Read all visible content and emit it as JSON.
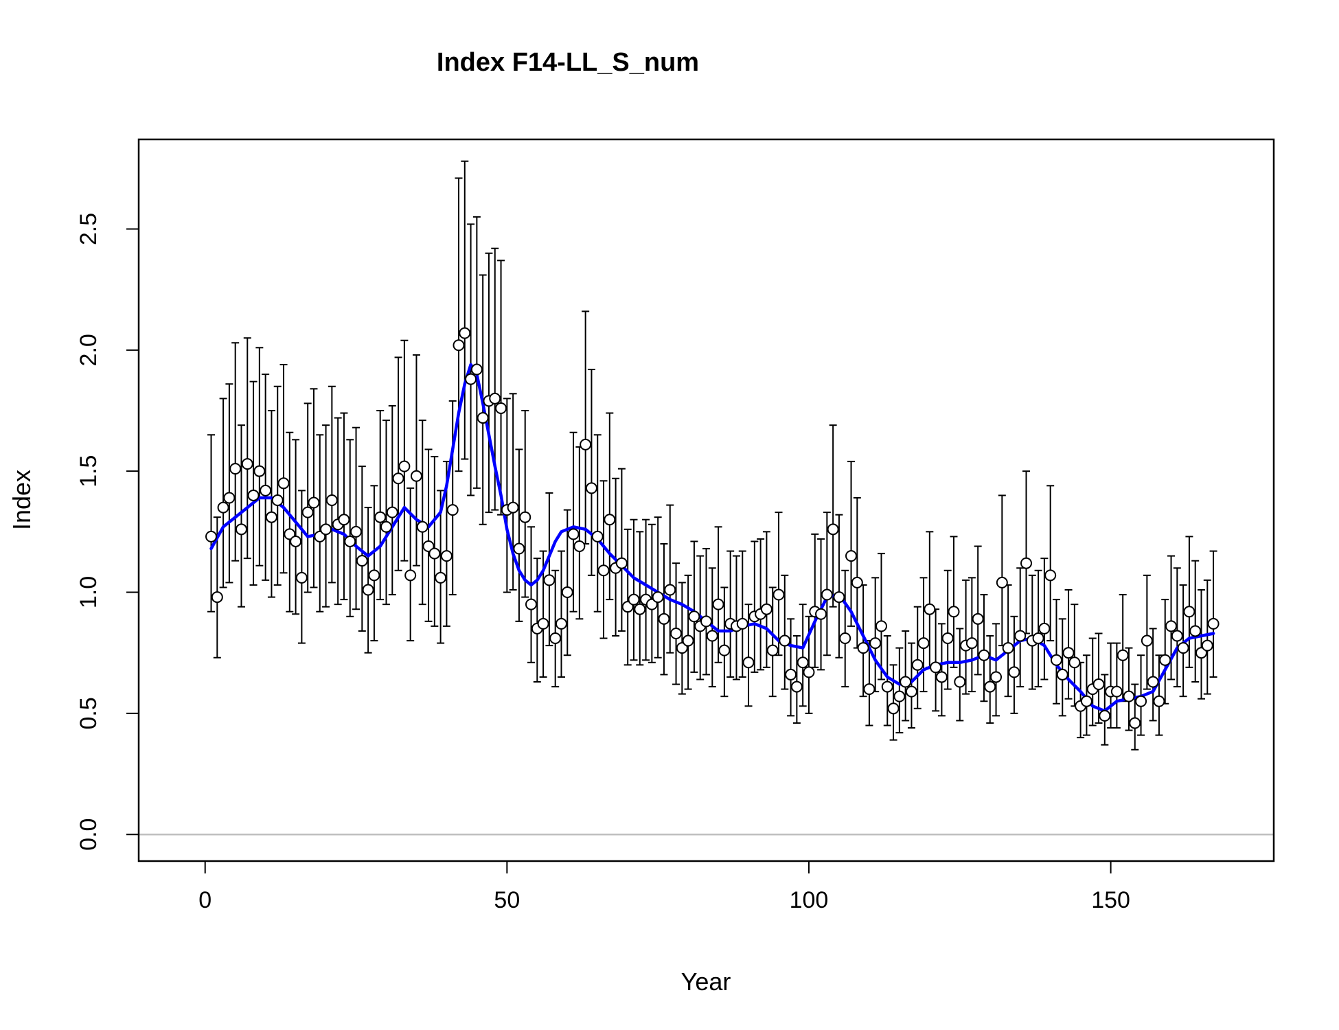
{
  "chart_data": {
    "type": "scatter",
    "title": "Index F14-LL_S_num",
    "xlabel": "Year",
    "ylabel": "Index",
    "xlim": [
      -11,
      177
    ],
    "ylim": [
      -0.11,
      2.87
    ],
    "x_ticks": [
      0,
      50,
      100,
      150
    ],
    "y_ticks": [
      0.0,
      0.5,
      1.0,
      1.5,
      2.0,
      2.5
    ],
    "x_tick_labels": [
      "0",
      "50",
      "100",
      "150"
    ],
    "y_tick_labels": [
      "0.0",
      "0.5",
      "1.0",
      "1.5",
      "2.0",
      "2.5"
    ],
    "reference_line": {
      "y": 0,
      "color": "#bebebe"
    },
    "grid": false,
    "legend": "none",
    "colors": {
      "points_fill": "#ffffff",
      "points_stroke": "#000000",
      "errorbars": "#000000",
      "smoother": "#0000ff"
    },
    "series": [
      {
        "kind": "observed",
        "x": [
          1,
          2,
          3,
          4,
          5,
          6,
          7,
          8,
          9,
          10,
          11,
          12,
          13,
          14,
          15,
          16,
          17,
          18,
          19,
          20,
          21,
          22,
          23,
          24,
          25,
          26,
          27,
          28,
          29,
          30,
          31,
          32,
          33,
          34,
          35,
          36,
          37,
          38,
          39,
          40,
          41,
          42,
          43,
          44,
          45,
          46,
          47,
          48,
          49,
          50,
          51,
          52,
          53,
          54,
          55,
          56,
          57,
          58,
          59,
          60,
          61,
          62,
          63,
          64,
          65,
          66,
          67,
          68,
          69,
          70,
          71,
          72,
          73,
          74,
          75,
          76,
          77,
          78,
          79,
          80,
          81,
          82,
          83,
          84,
          85,
          86,
          87,
          88,
          89,
          90,
          91,
          92,
          93,
          94,
          95,
          96,
          97,
          98,
          99,
          100,
          101,
          102,
          103,
          104,
          105,
          106,
          107,
          108,
          109,
          110,
          111,
          112,
          113,
          114,
          115,
          116,
          117,
          118,
          119,
          120,
          121,
          122,
          123,
          124,
          125,
          126,
          127,
          128,
          129,
          130,
          131,
          132,
          133,
          134,
          135,
          136,
          137,
          138,
          139,
          140,
          141,
          142,
          143,
          144,
          145,
          146,
          147,
          148,
          149,
          150,
          151,
          152,
          153,
          154,
          155,
          156,
          157,
          158,
          159,
          160,
          161,
          162,
          163,
          164,
          165,
          166,
          167
        ],
        "y": [
          1.23,
          0.98,
          1.35,
          1.39,
          1.51,
          1.26,
          1.53,
          1.4,
          1.5,
          1.42,
          1.31,
          1.38,
          1.45,
          1.24,
          1.21,
          1.06,
          1.33,
          1.37,
          1.23,
          1.26,
          1.38,
          1.28,
          1.3,
          1.21,
          1.25,
          1.13,
          1.01,
          1.07,
          1.31,
          1.27,
          1.33,
          1.47,
          1.52,
          1.07,
          1.48,
          1.27,
          1.19,
          1.16,
          1.06,
          1.15,
          1.34,
          2.02,
          2.07,
          1.88,
          1.92,
          1.72,
          1.79,
          1.8,
          1.76,
          1.34,
          1.35,
          1.18,
          1.31,
          0.95,
          0.85,
          0.87,
          1.05,
          0.81,
          0.87,
          1.0,
          1.24,
          1.19,
          1.61,
          1.43,
          1.23,
          1.09,
          1.3,
          1.1,
          1.12,
          0.94,
          0.97,
          0.93,
          0.97,
          0.95,
          0.98,
          0.89,
          1.01,
          0.83,
          0.77,
          0.8,
          0.9,
          0.86,
          0.88,
          0.82,
          0.95,
          0.76,
          0.87,
          0.86,
          0.87,
          0.71,
          0.9,
          0.91,
          0.93,
          0.76,
          0.99,
          0.8,
          0.66,
          0.61,
          0.71,
          0.67,
          0.92,
          0.91,
          0.99,
          1.26,
          0.98,
          0.81,
          1.15,
          1.04,
          0.77,
          0.6,
          0.79,
          0.86,
          0.61,
          0.52,
          0.57,
          0.63,
          0.59,
          0.7,
          0.79,
          0.93,
          0.69,
          0.65,
          0.81,
          0.92,
          0.63,
          0.78,
          0.79,
          0.89,
          0.74,
          0.61,
          0.65,
          1.04,
          0.77,
          0.67,
          0.82,
          1.12,
          0.8,
          0.81,
          0.85,
          1.07,
          0.72,
          0.66,
          0.75,
          0.71,
          0.53,
          0.55,
          0.6,
          0.62,
          0.49,
          0.59,
          0.59,
          0.74,
          0.57,
          0.46,
          0.55,
          0.8,
          0.63,
          0.55,
          0.72,
          0.86,
          0.82,
          0.77,
          0.92,
          0.84,
          0.75,
          0.78,
          0.87
        ],
        "lower": [
          0.92,
          0.73,
          1.02,
          1.04,
          1.13,
          0.94,
          1.14,
          1.03,
          1.11,
          1.05,
          0.98,
          1.03,
          1.08,
          0.92,
          0.91,
          0.79,
          1.0,
          1.02,
          0.92,
          0.94,
          1.04,
          0.95,
          0.97,
          0.9,
          0.93,
          0.84,
          0.75,
          0.8,
          0.97,
          0.95,
          0.99,
          1.09,
          1.13,
          0.8,
          1.11,
          0.95,
          0.88,
          0.86,
          0.79,
          0.86,
          0.99,
          1.5,
          1.55,
          1.4,
          1.43,
          1.28,
          1.33,
          1.34,
          1.32,
          1.0,
          1.01,
          0.88,
          0.98,
          0.71,
          0.63,
          0.65,
          0.78,
          0.61,
          0.65,
          0.74,
          0.92,
          0.89,
          1.2,
          1.07,
          0.92,
          0.81,
          0.97,
          0.82,
          0.84,
          0.7,
          0.72,
          0.7,
          0.72,
          0.71,
          0.73,
          0.66,
          0.75,
          0.62,
          0.58,
          0.6,
          0.67,
          0.64,
          0.66,
          0.61,
          0.71,
          0.57,
          0.65,
          0.64,
          0.65,
          0.53,
          0.67,
          0.68,
          0.69,
          0.57,
          0.74,
          0.6,
          0.49,
          0.46,
          0.53,
          0.5,
          0.69,
          0.68,
          0.74,
          0.94,
          0.73,
          0.61,
          0.86,
          0.77,
          0.57,
          0.45,
          0.59,
          0.64,
          0.45,
          0.39,
          0.42,
          0.47,
          0.44,
          0.52,
          0.59,
          0.69,
          0.51,
          0.49,
          0.6,
          0.69,
          0.47,
          0.58,
          0.59,
          0.66,
          0.55,
          0.46,
          0.49,
          0.78,
          0.57,
          0.5,
          0.61,
          0.83,
          0.6,
          0.61,
          0.64,
          0.8,
          0.54,
          0.49,
          0.56,
          0.53,
          0.4,
          0.41,
          0.45,
          0.46,
          0.37,
          0.44,
          0.44,
          0.55,
          0.43,
          0.35,
          0.41,
          0.6,
          0.47,
          0.41,
          0.54,
          0.64,
          0.61,
          0.57,
          0.69,
          0.63,
          0.56,
          0.58,
          0.65
        ],
        "upper": [
          1.65,
          1.31,
          1.8,
          1.86,
          2.03,
          1.69,
          2.05,
          1.87,
          2.01,
          1.9,
          1.75,
          1.85,
          1.94,
          1.66,
          1.63,
          1.42,
          1.78,
          1.84,
          1.65,
          1.69,
          1.85,
          1.72,
          1.74,
          1.63,
          1.68,
          1.52,
          1.35,
          1.44,
          1.75,
          1.71,
          1.77,
          1.97,
          2.04,
          1.43,
          1.98,
          1.71,
          1.59,
          1.56,
          1.42,
          1.54,
          1.79,
          2.71,
          2.78,
          2.52,
          2.55,
          2.31,
          2.4,
          2.42,
          2.37,
          1.8,
          1.82,
          1.59,
          1.75,
          1.27,
          1.14,
          1.17,
          1.41,
          1.09,
          1.17,
          1.34,
          1.66,
          1.6,
          2.16,
          1.92,
          1.65,
          1.46,
          1.74,
          1.47,
          1.51,
          1.26,
          1.3,
          1.25,
          1.3,
          1.28,
          1.31,
          1.2,
          1.36,
          1.12,
          1.04,
          1.07,
          1.21,
          1.15,
          1.18,
          1.1,
          1.27,
          1.02,
          1.17,
          1.15,
          1.17,
          0.95,
          1.21,
          1.22,
          1.25,
          1.02,
          1.33,
          1.07,
          0.89,
          0.82,
          0.95,
          0.9,
          1.24,
          1.22,
          1.33,
          1.69,
          1.32,
          1.09,
          1.54,
          1.39,
          1.03,
          0.8,
          1.06,
          1.16,
          0.82,
          0.7,
          0.77,
          0.84,
          0.79,
          0.94,
          1.06,
          1.25,
          0.93,
          0.87,
          1.09,
          1.23,
          0.85,
          1.05,
          1.06,
          1.19,
          0.99,
          0.82,
          0.87,
          1.4,
          1.03,
          0.9,
          1.1,
          1.5,
          1.07,
          1.09,
          1.14,
          1.44,
          0.97,
          0.89,
          1.01,
          0.95,
          0.71,
          0.74,
          0.81,
          0.83,
          0.66,
          0.79,
          0.79,
          0.99,
          0.77,
          0.62,
          0.74,
          1.07,
          0.85,
          0.74,
          0.97,
          1.15,
          1.1,
          1.03,
          1.23,
          1.13,
          1.01,
          1.05,
          1.17
        ]
      },
      {
        "kind": "smoother",
        "x": [
          1,
          3,
          5,
          7,
          9,
          11,
          13,
          15,
          17,
          19,
          21,
          23,
          25,
          27,
          29,
          31,
          33,
          35,
          37,
          39,
          40,
          41,
          42,
          43,
          44,
          45,
          46,
          47,
          48,
          49,
          50,
          51,
          52,
          53,
          54,
          55,
          56,
          57,
          58,
          59,
          61,
          63,
          65,
          67,
          69,
          71,
          73,
          75,
          77,
          79,
          81,
          83,
          85,
          87,
          89,
          91,
          93,
          95,
          97,
          99,
          101,
          103,
          105,
          107,
          109,
          111,
          113,
          115,
          117,
          119,
          121,
          123,
          125,
          127,
          129,
          131,
          133,
          135,
          137,
          139,
          141,
          143,
          145,
          147,
          149,
          151,
          153,
          155,
          157,
          159,
          161,
          163,
          165,
          167
        ],
        "y": [
          1.18,
          1.27,
          1.31,
          1.35,
          1.39,
          1.39,
          1.35,
          1.29,
          1.23,
          1.24,
          1.26,
          1.24,
          1.19,
          1.15,
          1.19,
          1.27,
          1.35,
          1.3,
          1.27,
          1.33,
          1.44,
          1.59,
          1.74,
          1.86,
          1.94,
          1.9,
          1.78,
          1.65,
          1.52,
          1.4,
          1.26,
          1.16,
          1.09,
          1.05,
          1.03,
          1.05,
          1.09,
          1.15,
          1.21,
          1.25,
          1.27,
          1.26,
          1.22,
          1.16,
          1.11,
          1.06,
          1.03,
          1.0,
          0.97,
          0.95,
          0.92,
          0.88,
          0.84,
          0.84,
          0.86,
          0.87,
          0.85,
          0.8,
          0.78,
          0.77,
          0.88,
          0.98,
          0.99,
          0.92,
          0.82,
          0.72,
          0.65,
          0.62,
          0.63,
          0.68,
          0.7,
          0.71,
          0.71,
          0.72,
          0.74,
          0.72,
          0.76,
          0.8,
          0.81,
          0.78,
          0.7,
          0.64,
          0.59,
          0.53,
          0.51,
          0.55,
          0.56,
          0.57,
          0.59,
          0.68,
          0.77,
          0.81,
          0.82,
          0.83
        ]
      }
    ]
  }
}
